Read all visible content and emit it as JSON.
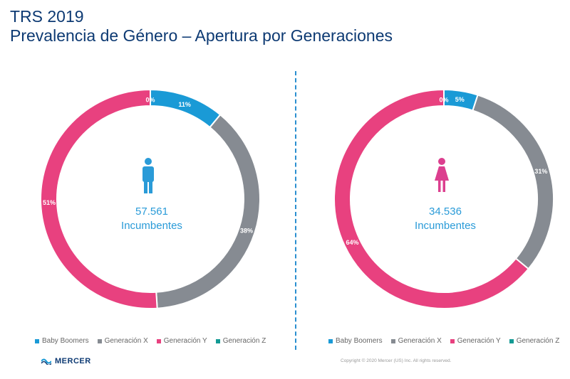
{
  "header": {
    "title_line1": "TRS 2019",
    "title_line2": "Prevalencia de Género – Apertura por Generaciones"
  },
  "colors": {
    "Baby Boomers": "#1a9ad6",
    "Generación X": "#868b92",
    "Generación Y": "#e8417f",
    "Generación Z": "#139a94",
    "male_icon": "#2a9bd8",
    "female_icon": "#dc3f8f",
    "title": "#0d3a73",
    "divider": "#2a8fd0"
  },
  "chart_data": [
    {
      "type": "pie",
      "donut": true,
      "icon": "male-icon",
      "center_value": "57.561",
      "center_label": "Incumbentes",
      "categories": [
        "Baby Boomers",
        "Generación X",
        "Generación Y",
        "Generación Z"
      ],
      "values": [
        11,
        38,
        51,
        0
      ],
      "labels": [
        "11%",
        "38%",
        "51%",
        "0%"
      ],
      "legend_position": "bottom"
    },
    {
      "type": "pie",
      "donut": true,
      "icon": "female-icon",
      "center_value": "34.536",
      "center_label": "Incumbentes",
      "categories": [
        "Baby Boomers",
        "Generación X",
        "Generación Y",
        "Generación Z"
      ],
      "values": [
        5,
        31,
        64,
        0
      ],
      "labels": [
        "5%",
        "31%",
        "64%",
        "0%"
      ],
      "legend_position": "bottom"
    }
  ],
  "legend": {
    "items": [
      "Baby Boomers",
      "Generación X",
      "Generación Y",
      "Generación Z"
    ]
  },
  "footer": {
    "logo_text": "MERCER",
    "copyright": "Copyright © 2020 Mercer (US) Inc. All rights reserved."
  }
}
